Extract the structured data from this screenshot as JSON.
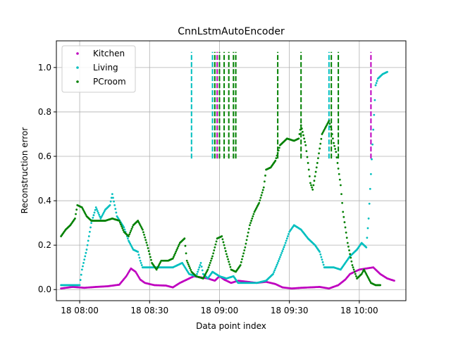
{
  "chart_data": {
    "type": "scatter",
    "title": "CnnLstmAutoEncoder",
    "xlabel": "Data point index",
    "ylabel": "Reconstruction error",
    "x_unit": "time of day (HH:MM), day 18",
    "xlim": [
      "07:50",
      "10:20"
    ],
    "ylim": [
      -0.05,
      1.12
    ],
    "xticks": [
      {
        "value": "08:00",
        "label": "18 08:00"
      },
      {
        "value": "08:30",
        "label": "18 08:30"
      },
      {
        "value": "09:00",
        "label": "18 09:00"
      },
      {
        "value": "09:30",
        "label": "18 09:30"
      },
      {
        "value": "10:00",
        "label": "18 10:00"
      }
    ],
    "yticks": [
      "0.0",
      "0.2",
      "0.4",
      "0.6",
      "0.8",
      "1.0"
    ],
    "grid": true,
    "legend_position": "top-left",
    "series": [
      {
        "name": "Kitchen",
        "color": "#bf00bf",
        "points": [
          [
            "07:52",
            0.005
          ],
          [
            "07:57",
            0.012
          ],
          [
            "08:02",
            0.008
          ],
          [
            "08:07",
            0.012
          ],
          [
            "08:12",
            0.015
          ],
          [
            "08:17",
            0.022
          ],
          [
            "08:20",
            0.06
          ],
          [
            "08:22",
            0.095
          ],
          [
            "08:24",
            0.08
          ],
          [
            "08:26",
            0.045
          ],
          [
            "08:28",
            0.03
          ],
          [
            "08:32",
            0.02
          ],
          [
            "08:37",
            0.018
          ],
          [
            "08:40",
            0.01
          ],
          [
            "08:43",
            0.03
          ],
          [
            "08:47",
            0.05
          ],
          [
            "08:49",
            0.06
          ],
          [
            "08:52",
            0.055
          ],
          [
            "08:55",
            0.05
          ],
          [
            "08:58",
            0.04
          ],
          [
            "09:00",
            0.06
          ],
          [
            "09:02",
            0.045
          ],
          [
            "09:05",
            0.03
          ],
          [
            "09:08",
            0.04
          ],
          [
            "09:12",
            0.035
          ],
          [
            "09:16",
            0.03
          ],
          [
            "09:20",
            0.035
          ],
          [
            "09:24",
            0.025
          ],
          [
            "09:27",
            0.01
          ],
          [
            "09:31",
            0.005
          ],
          [
            "09:35",
            0.008
          ],
          [
            "09:39",
            0.01
          ],
          [
            "09:43",
            0.012
          ],
          [
            "09:47",
            0.005
          ],
          [
            "09:51",
            0.02
          ],
          [
            "09:54",
            0.045
          ],
          [
            "09:56",
            0.07
          ],
          [
            "09:58",
            0.08
          ],
          [
            "10:00",
            0.09
          ],
          [
            "10:03",
            0.095
          ],
          [
            "10:06",
            0.1
          ],
          [
            "10:09",
            0.07
          ],
          [
            "10:12",
            0.05
          ],
          [
            "10:15",
            0.04
          ]
        ]
      },
      {
        "name": "Living",
        "color": "#00bfbf",
        "points": [
          [
            "07:52",
            0.02
          ],
          [
            "07:57",
            0.02
          ],
          [
            "08:00",
            0.02
          ],
          [
            "08:01",
            0.09
          ],
          [
            "08:03",
            0.18
          ],
          [
            "08:05",
            0.3
          ],
          [
            "08:07",
            0.37
          ],
          [
            "08:09",
            0.32
          ],
          [
            "08:11",
            0.36
          ],
          [
            "08:13",
            0.38
          ],
          [
            "08:14",
            0.43
          ],
          [
            "08:16",
            0.33
          ],
          [
            "08:19",
            0.28
          ],
          [
            "08:21",
            0.22
          ],
          [
            "08:23",
            0.18
          ],
          [
            "08:25",
            0.17
          ],
          [
            "08:26",
            0.13
          ],
          [
            "08:27",
            0.1
          ],
          [
            "08:30",
            0.1
          ],
          [
            "08:35",
            0.1
          ],
          [
            "08:40",
            0.1
          ],
          [
            "08:44",
            0.12
          ],
          [
            "08:47",
            0.07
          ],
          [
            "08:50",
            0.06
          ],
          [
            "08:52",
            0.12
          ],
          [
            "08:53",
            0.07
          ],
          [
            "08:55",
            0.05
          ],
          [
            "08:57",
            0.08
          ],
          [
            "09:00",
            0.06
          ],
          [
            "09:03",
            0.05
          ],
          [
            "09:06",
            0.06
          ],
          [
            "09:08",
            0.03
          ],
          [
            "09:12",
            0.03
          ],
          [
            "09:16",
            0.03
          ],
          [
            "09:20",
            0.04
          ],
          [
            "09:23",
            0.07
          ],
          [
            "09:25",
            0.12
          ],
          [
            "09:28",
            0.2
          ],
          [
            "09:30",
            0.26
          ],
          [
            "09:32",
            0.29
          ],
          [
            "09:35",
            0.27
          ],
          [
            "09:38",
            0.23
          ],
          [
            "09:41",
            0.2
          ],
          [
            "09:43",
            0.17
          ],
          [
            "09:45",
            0.1
          ],
          [
            "09:49",
            0.1
          ],
          [
            "09:52",
            0.09
          ],
          [
            "09:54",
            0.12
          ],
          [
            "09:56",
            0.15
          ],
          [
            "09:59",
            0.18
          ],
          [
            "10:01",
            0.21
          ],
          [
            "10:03",
            0.19
          ],
          [
            "10:04",
            0.32
          ],
          [
            "10:05",
            0.52
          ],
          [
            "10:06",
            0.72
          ],
          [
            "10:07",
            0.92
          ],
          [
            "10:08",
            0.95
          ],
          [
            "10:10",
            0.97
          ],
          [
            "10:12",
            0.98
          ]
        ]
      },
      {
        "name": "PCroom",
        "color": "#008000",
        "points": [
          [
            "07:52",
            0.24
          ],
          [
            "07:54",
            0.27
          ],
          [
            "07:56",
            0.29
          ],
          [
            "07:58",
            0.32
          ],
          [
            "07:59",
            0.38
          ],
          [
            "08:01",
            0.37
          ],
          [
            "08:03",
            0.33
          ],
          [
            "08:05",
            0.31
          ],
          [
            "08:08",
            0.31
          ],
          [
            "08:11",
            0.31
          ],
          [
            "08:14",
            0.32
          ],
          [
            "08:17",
            0.31
          ],
          [
            "08:19",
            0.26
          ],
          [
            "08:21",
            0.24
          ],
          [
            "08:23",
            0.29
          ],
          [
            "08:25",
            0.31
          ],
          [
            "08:27",
            0.27
          ],
          [
            "08:29",
            0.2
          ],
          [
            "08:31",
            0.12
          ],
          [
            "08:33",
            0.09
          ],
          [
            "08:35",
            0.13
          ],
          [
            "08:38",
            0.13
          ],
          [
            "08:40",
            0.14
          ],
          [
            "08:43",
            0.21
          ],
          [
            "08:45",
            0.23
          ],
          [
            "08:46",
            0.13
          ],
          [
            "08:48",
            0.08
          ],
          [
            "08:50",
            0.06
          ],
          [
            "08:53",
            0.05
          ],
          [
            "08:55",
            0.09
          ],
          [
            "08:57",
            0.15
          ],
          [
            "08:59",
            0.23
          ],
          [
            "09:01",
            0.24
          ],
          [
            "09:03",
            0.16
          ],
          [
            "09:05",
            0.09
          ],
          [
            "09:07",
            0.08
          ],
          [
            "09:09",
            0.11
          ],
          [
            "09:11",
            0.19
          ],
          [
            "09:13",
            0.29
          ],
          [
            "09:15",
            0.35
          ],
          [
            "09:17",
            0.39
          ],
          [
            "09:19",
            0.46
          ],
          [
            "09:20",
            0.54
          ],
          [
            "09:22",
            0.55
          ],
          [
            "09:24",
            0.58
          ],
          [
            "09:26",
            0.65
          ],
          [
            "09:29",
            0.68
          ],
          [
            "09:32",
            0.67
          ],
          [
            "09:34",
            0.68
          ],
          [
            "09:35",
            0.74
          ],
          [
            "09:37",
            0.65
          ],
          [
            "09:38",
            0.57
          ],
          [
            "09:39",
            0.48
          ],
          [
            "09:40",
            0.45
          ],
          [
            "09:42",
            0.57
          ],
          [
            "09:44",
            0.7
          ],
          [
            "09:46",
            0.74
          ],
          [
            "09:47",
            0.76
          ],
          [
            "09:48",
            0.72
          ],
          [
            "09:49",
            0.66
          ],
          [
            "09:50",
            0.62
          ],
          [
            "09:52",
            0.47
          ],
          [
            "09:53",
            0.35
          ],
          [
            "09:55",
            0.21
          ],
          [
            "09:57",
            0.11
          ],
          [
            "09:59",
            0.05
          ],
          [
            "10:01",
            0.07
          ],
          [
            "10:02",
            0.09
          ],
          [
            "10:03",
            0.07
          ],
          [
            "10:05",
            0.03
          ],
          [
            "10:07",
            0.02
          ],
          [
            "10:09",
            0.02
          ]
        ]
      }
    ],
    "vertical_markers": [
      {
        "series": "Living",
        "x": "08:48",
        "y_range": [
          0.59,
          1.07
        ]
      },
      {
        "series": "Living",
        "x": "08:57",
        "y_range": [
          0.59,
          1.07
        ]
      },
      {
        "series": "Living",
        "x": "09:47",
        "y_range": [
          0.59,
          1.07
        ]
      },
      {
        "series": "Kitchen",
        "x": "08:59",
        "y_range": [
          0.59,
          1.07
        ]
      },
      {
        "series": "Kitchen",
        "x": "10:05",
        "y_range": [
          0.59,
          1.07
        ]
      },
      {
        "series": "PCroom",
        "x": "08:58",
        "y_range": [
          0.59,
          1.07
        ]
      },
      {
        "series": "PCroom",
        "x": "09:00",
        "y_range": [
          0.59,
          1.07
        ]
      },
      {
        "series": "PCroom",
        "x": "09:02",
        "y_range": [
          0.59,
          1.07
        ]
      },
      {
        "series": "PCroom",
        "x": "09:04",
        "y_range": [
          0.59,
          1.07
        ]
      },
      {
        "series": "PCroom",
        "x": "09:06",
        "y_range": [
          0.59,
          1.07
        ]
      },
      {
        "series": "PCroom",
        "x": "09:07",
        "y_range": [
          0.59,
          1.07
        ]
      },
      {
        "series": "PCroom",
        "x": "09:25",
        "y_range": [
          0.59,
          1.07
        ]
      },
      {
        "series": "PCroom",
        "x": "09:35",
        "y_range": [
          0.59,
          1.07
        ]
      },
      {
        "series": "PCroom",
        "x": "09:48",
        "y_range": [
          0.59,
          1.07
        ]
      },
      {
        "series": "PCroom",
        "x": "09:51",
        "y_range": [
          0.59,
          1.07
        ]
      }
    ]
  }
}
